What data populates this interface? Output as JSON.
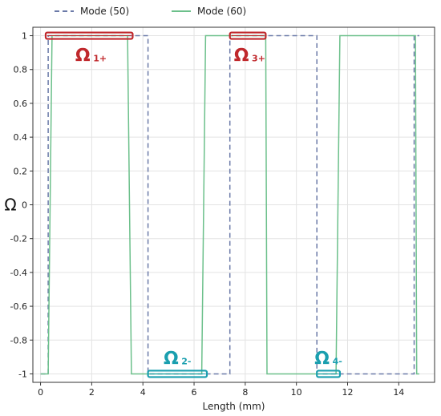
{
  "chart_data": {
    "type": "line",
    "xlabel": "Length (mm)",
    "ylabel": "Ω",
    "xlim": [
      -0.3,
      15.4
    ],
    "ylim": [
      -1.05,
      1.05
    ],
    "x_ticks": [
      0,
      2,
      4,
      6,
      8,
      10,
      12,
      14
    ],
    "y_ticks": [
      1,
      0.8,
      0.6,
      0.4,
      0.2,
      0,
      -0.2,
      -0.4,
      -0.6,
      -0.8,
      -1
    ],
    "grid": true,
    "legend": {
      "placement": "top-center"
    },
    "series": [
      {
        "name": "Mode (50)",
        "style": "dashed",
        "color": "#6b7aa8",
        "points": [
          [
            0,
            -1
          ],
          [
            0.3,
            -1
          ],
          [
            0.3,
            1
          ],
          [
            4.2,
            1
          ],
          [
            4.2,
            -1
          ],
          [
            7.4,
            -1
          ],
          [
            7.4,
            1
          ],
          [
            10.8,
            1
          ],
          [
            10.8,
            -1
          ],
          [
            14.6,
            -1
          ],
          [
            14.6,
            1
          ],
          [
            14.8,
            1
          ]
        ]
      },
      {
        "name": "Mode (60)",
        "style": "solid",
        "color": "#6cc08b",
        "points": [
          [
            0,
            -1
          ],
          [
            0.3,
            -1
          ],
          [
            0.45,
            1
          ],
          [
            3.4,
            1
          ],
          [
            3.55,
            -1
          ],
          [
            6.3,
            -1
          ],
          [
            6.45,
            1
          ],
          [
            8.8,
            1
          ],
          [
            8.85,
            -1
          ],
          [
            11.55,
            -1
          ],
          [
            11.7,
            1
          ],
          [
            14.65,
            1
          ],
          [
            14.7,
            -1
          ],
          [
            14.8,
            -1
          ]
        ]
      }
    ],
    "annotations": [
      {
        "main": "Ω",
        "sub": "1+",
        "color": "#c0282c",
        "box": [
          0.2,
          3.6
        ],
        "box_y": 1
      },
      {
        "main": "Ω",
        "sub": "3+",
        "color": "#c0282c",
        "box": [
          7.4,
          8.8
        ],
        "box_y": 1
      },
      {
        "main": "Ω",
        "sub": "2-",
        "color": "#1a9faf",
        "box": [
          4.2,
          6.5
        ],
        "box_y": -1
      },
      {
        "main": "Ω",
        "sub": "4-",
        "color": "#1a9faf",
        "box": [
          10.8,
          11.7
        ],
        "box_y": -1
      }
    ]
  }
}
